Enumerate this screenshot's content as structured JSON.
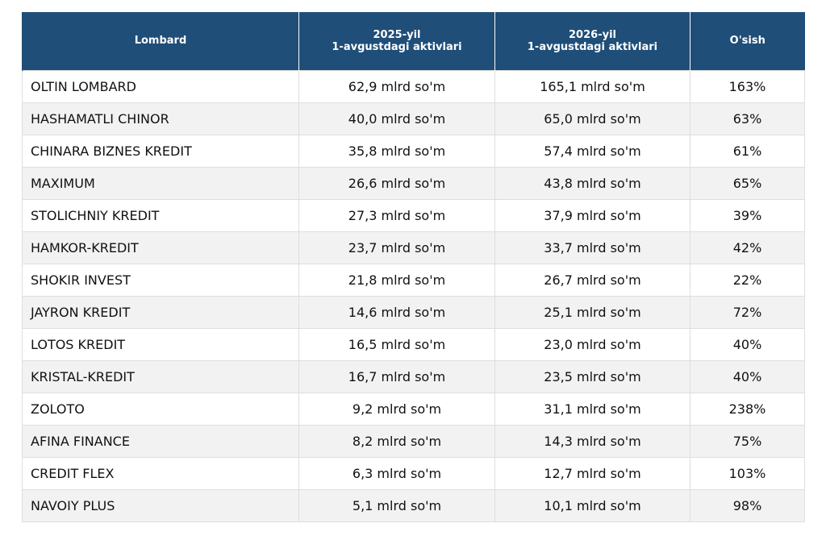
{
  "table": {
    "headers": [
      {
        "lines": [
          "Lombard"
        ]
      },
      {
        "lines": [
          "2025-yil",
          "1-avgustdagi aktivlari"
        ]
      },
      {
        "lines": [
          "2026-yil",
          "1-avgustdagi aktivlari"
        ]
      },
      {
        "lines": [
          "O'sish"
        ]
      }
    ],
    "rows": [
      [
        "OLTIN LOMBARD",
        "62,9 mlrd so'm",
        "165,1 mlrd so'm",
        "163%"
      ],
      [
        "HASHAMATLI CHINOR",
        "40,0 mlrd so'm",
        "65,0 mlrd so'm",
        "63%"
      ],
      [
        "CHINARA BIZNES KREDIT",
        "35,8 mlrd so'm",
        "57,4 mlrd so'm",
        "61%"
      ],
      [
        "MAXIMUM",
        "26,6 mlrd so'm",
        "43,8 mlrd so'm",
        "65%"
      ],
      [
        "STOLICHNIY KREDIT",
        "27,3 mlrd so'm",
        "37,9 mlrd so'm",
        "39%"
      ],
      [
        "HAMKOR-KREDIT",
        "23,7 mlrd so'm",
        "33,7 mlrd so'm",
        "42%"
      ],
      [
        "SHOKIR INVEST",
        "21,8 mlrd so'm",
        "26,7 mlrd so'm",
        "22%"
      ],
      [
        "JAYRON KREDIT",
        "14,6 mlrd so'm",
        "25,1 mlrd so'm",
        "72%"
      ],
      [
        "LOTOS KREDIT",
        "16,5 mlrd so'm",
        "23,0 mlrd so'm",
        "40%"
      ],
      [
        "KRISTAL-KREDIT",
        "16,7 mlrd so'm",
        "23,5 mlrd so'm",
        "40%"
      ],
      [
        "ZOLOTO",
        "9,2 mlrd so'm",
        "31,1 mlrd so'm",
        "238%"
      ],
      [
        "AFINA FINANCE",
        "8,2 mlrd so'm",
        "14,3 mlrd so'm",
        "75%"
      ],
      [
        "CREDIT FLEX",
        "6,3 mlrd so'm",
        "12,7 mlrd so'm",
        "103%"
      ],
      [
        "NAVOIY PLUS",
        "5,1 mlrd so'm",
        "10,1 mlrd so'm",
        "98%"
      ]
    ]
  },
  "colors": {
    "header_bg": "#1f4e79",
    "header_text": "#ffffff",
    "row_alt_bg": "#f2f2f2",
    "border": "#dedede"
  }
}
